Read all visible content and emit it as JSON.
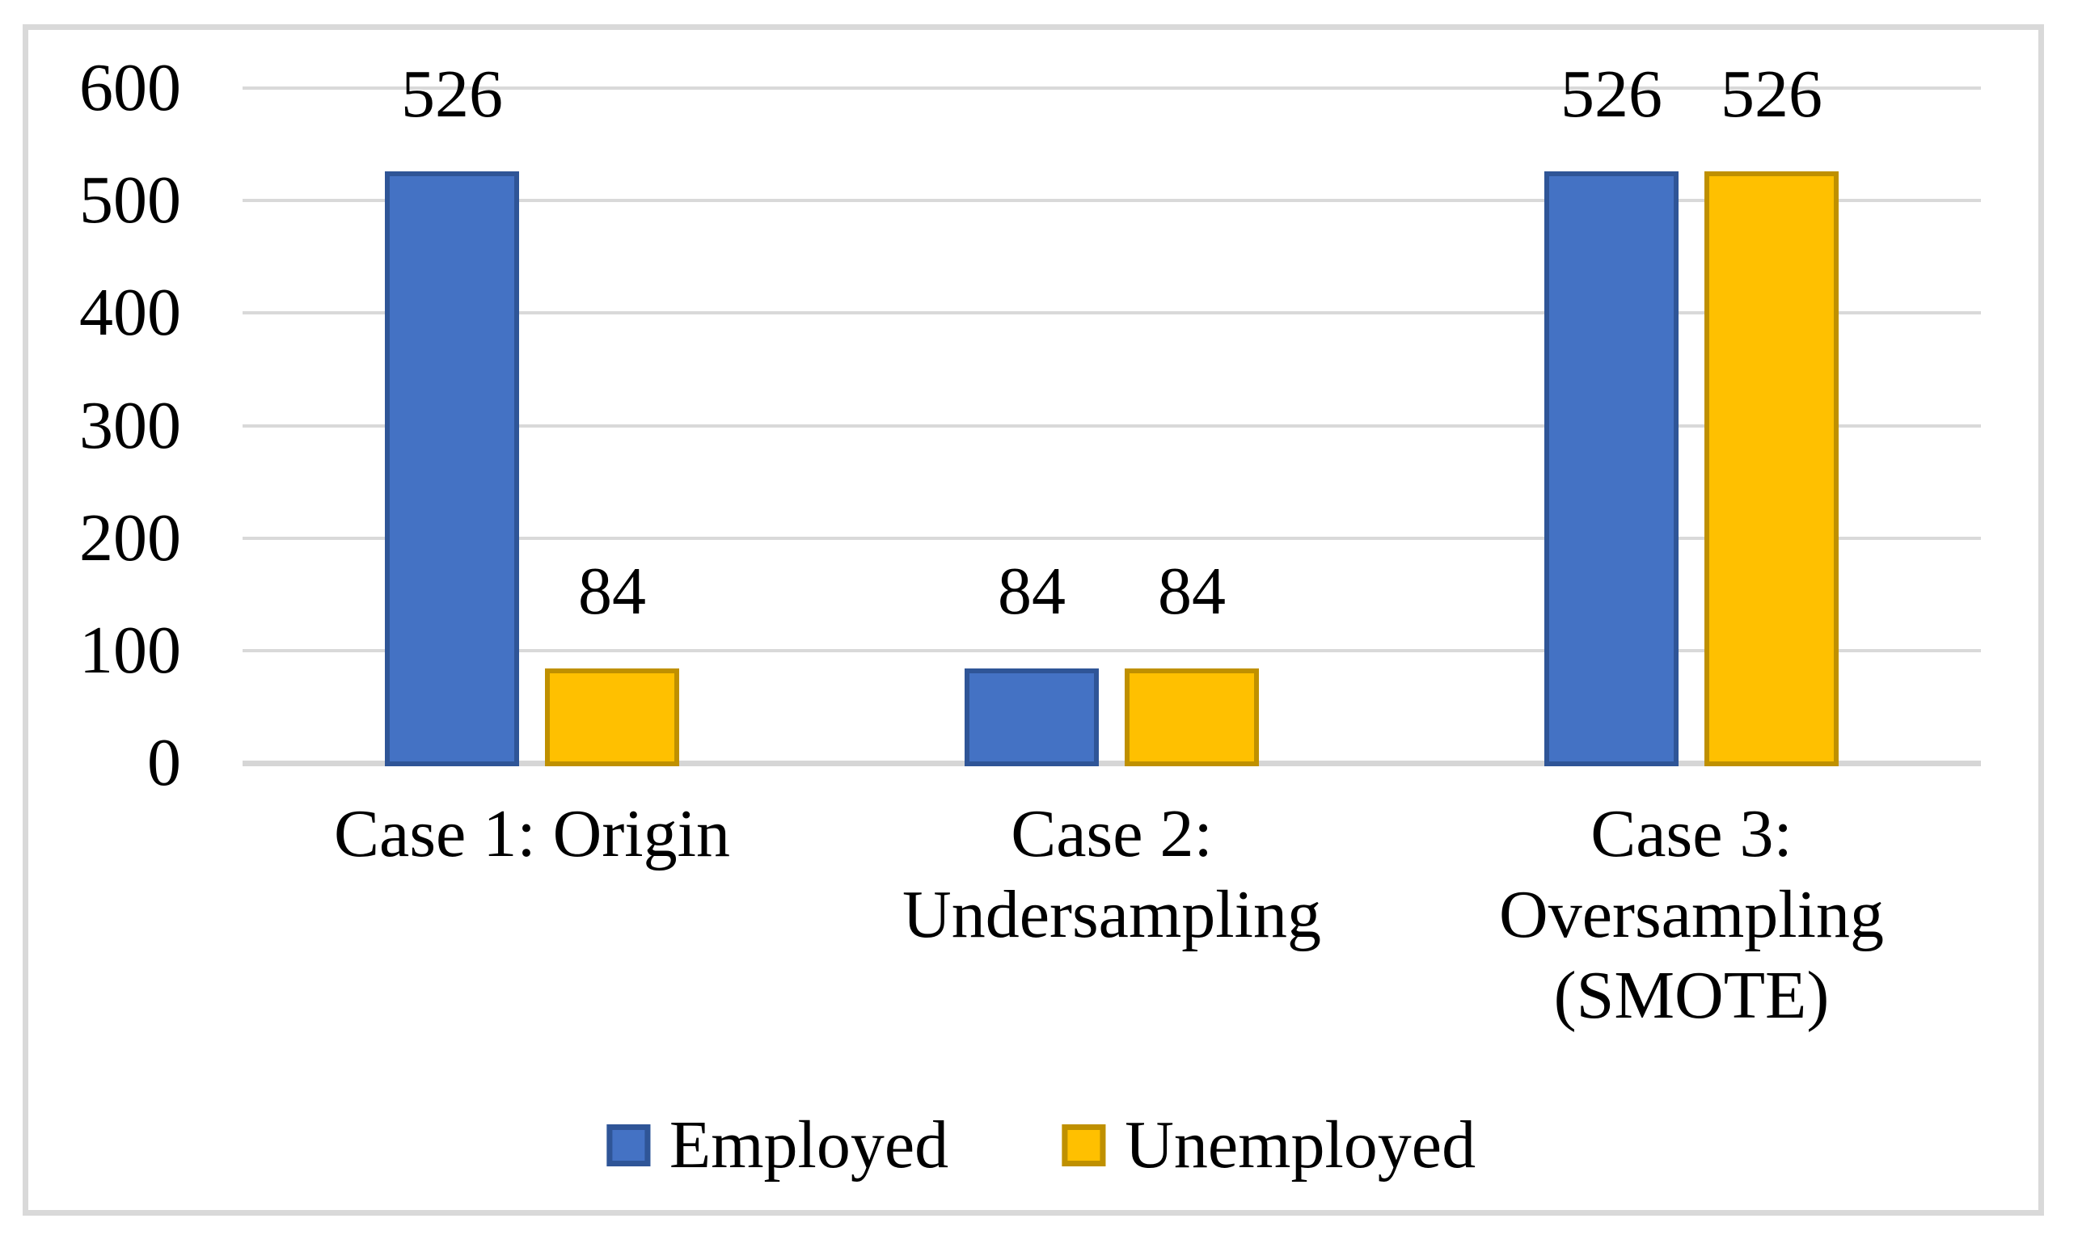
{
  "chart_data": {
    "type": "bar",
    "title": "",
    "categories": [
      "Case 1: Origin",
      "Case 2: Undersampling",
      "Case 3: Oversampling (SMOTE)"
    ],
    "category_label_lines": [
      [
        "Case 1: Origin"
      ],
      [
        "Case 2:",
        "Undersampling"
      ],
      [
        "Case 3:",
        "Oversampling",
        "(SMOTE)"
      ]
    ],
    "series": [
      {
        "name": "Employed",
        "values": [
          526,
          84,
          526
        ],
        "fill": "#4472C4",
        "border": "#2F5597"
      },
      {
        "name": "Unemployed",
        "values": [
          84,
          84,
          526
        ],
        "fill": "#FFC000",
        "border": "#BF9000"
      }
    ],
    "data_labels": true,
    "ylim": [
      0,
      600
    ],
    "yticks": [
      0,
      100,
      200,
      300,
      400,
      500,
      600
    ],
    "grid": true,
    "gridline_color": "#D9D9D9",
    "axis_line_color": "#D6D6D6",
    "frame_border_color": "#D9D9D9",
    "text_color": "#000000",
    "background": "#FFFFFF",
    "legend_position": "bottom",
    "legend_entries": [
      {
        "label": "Employed",
        "fill": "#4472C4",
        "border": "#2F5597"
      },
      {
        "label": "Unemployed",
        "fill": "#FFC000",
        "border": "#BF9000"
      }
    ]
  }
}
